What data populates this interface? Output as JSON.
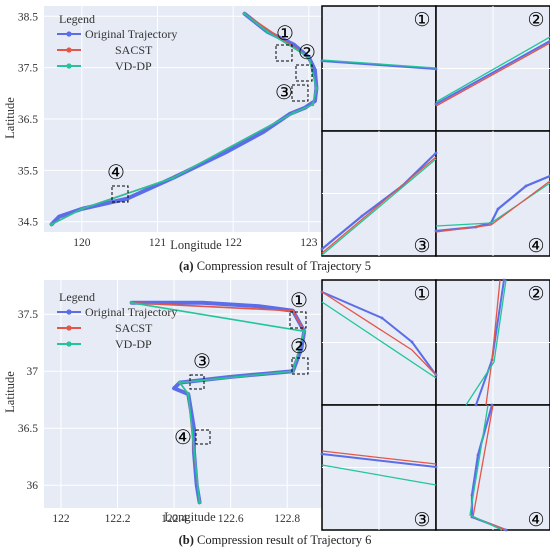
{
  "colors": {
    "plot_bg": "#e6ebf5",
    "grid": "#ffffff",
    "original": "#5b6ee8",
    "sacst": "#e4564a",
    "vddp": "#22c59a",
    "frame": "#000000"
  },
  "figure_a": {
    "caption_letter": "(a)",
    "caption_text": "Compression result of Trajectory 5"
  },
  "figure_b": {
    "caption_letter": "(b)",
    "caption_text": "Compression result of Trajectory 6"
  },
  "chart_data": [
    {
      "type": "line",
      "title": "",
      "xlabel": "Longitude",
      "ylabel": "Latitude",
      "xlim": [
        119.5,
        123.2
      ],
      "ylim": [
        34.3,
        38.7
      ],
      "xticks": [
        "120",
        "121",
        "122",
        "123"
      ],
      "yticks": [
        "34.5",
        "35.5",
        "36.5",
        "37.5",
        "38.5"
      ],
      "legend": {
        "title": "Legend",
        "position": "top-left",
        "entries": [
          "Original Trajectory",
          "SACST",
          "VD-DP"
        ]
      },
      "markers": [
        "①",
        "②",
        "③",
        "④"
      ],
      "series": [
        {
          "name": "Original Trajectory",
          "x": [
            122.15,
            122.45,
            122.8,
            123.0,
            123.08,
            123.1,
            123.08,
            122.95,
            122.75,
            122.4,
            121.9,
            121.2,
            120.6,
            120.0,
            119.7,
            119.6
          ],
          "y": [
            38.55,
            38.2,
            37.95,
            37.7,
            37.45,
            37.1,
            36.85,
            36.72,
            36.6,
            36.25,
            35.85,
            35.35,
            34.95,
            34.75,
            34.6,
            34.45
          ]
        },
        {
          "name": "SACST",
          "x": [
            122.15,
            123.0,
            123.1,
            123.05,
            122.8,
            121.2,
            120.0,
            119.6
          ],
          "y": [
            38.55,
            37.7,
            37.1,
            36.78,
            36.62,
            35.35,
            34.75,
            34.45
          ]
        },
        {
          "name": "VD-DP",
          "x": [
            122.15,
            122.45,
            123.0,
            123.1,
            123.05,
            122.8,
            121.2,
            120.0,
            119.6
          ],
          "y": [
            38.55,
            38.2,
            37.7,
            37.1,
            36.78,
            36.62,
            35.35,
            34.75,
            34.45
          ]
        }
      ]
    },
    {
      "type": "line",
      "title": "",
      "xlabel": "Longitude",
      "ylabel": "Latitude",
      "xlim": [
        121.94,
        122.93
      ],
      "ylim": [
        35.8,
        37.8
      ],
      "xticks": [
        "122",
        "122.2",
        "122.4",
        "122.6",
        "122.8"
      ],
      "yticks": [
        "36",
        "36.5",
        "37",
        "37.5"
      ],
      "legend": {
        "title": "Legend",
        "position": "top-left",
        "entries": [
          "Original Trajectory",
          "SACST",
          "VD-DP"
        ]
      },
      "markers": [
        "①",
        "②",
        "③",
        "④"
      ],
      "series": [
        {
          "name": "Original Trajectory",
          "x": [
            122.25,
            122.5,
            122.7,
            122.82,
            122.86,
            122.85,
            122.82,
            122.6,
            122.42,
            122.4,
            122.45,
            122.47,
            122.47,
            122.48,
            122.49
          ],
          "y": [
            37.6,
            37.6,
            37.57,
            37.53,
            37.35,
            37.2,
            37.0,
            36.95,
            36.9,
            36.85,
            36.8,
            36.5,
            36.3,
            36.0,
            35.85
          ]
        },
        {
          "name": "SACST",
          "x": [
            122.25,
            122.82,
            122.86,
            122.82,
            122.42,
            122.45,
            122.47,
            122.49
          ],
          "y": [
            37.6,
            37.53,
            37.35,
            37.0,
            36.9,
            36.8,
            36.3,
            35.85
          ]
        },
        {
          "name": "VD-DP",
          "x": [
            122.25,
            122.86,
            122.82,
            122.42,
            122.45,
            122.49
          ],
          "y": [
            37.6,
            37.35,
            37.0,
            36.9,
            36.8,
            35.85
          ]
        }
      ]
    }
  ]
}
